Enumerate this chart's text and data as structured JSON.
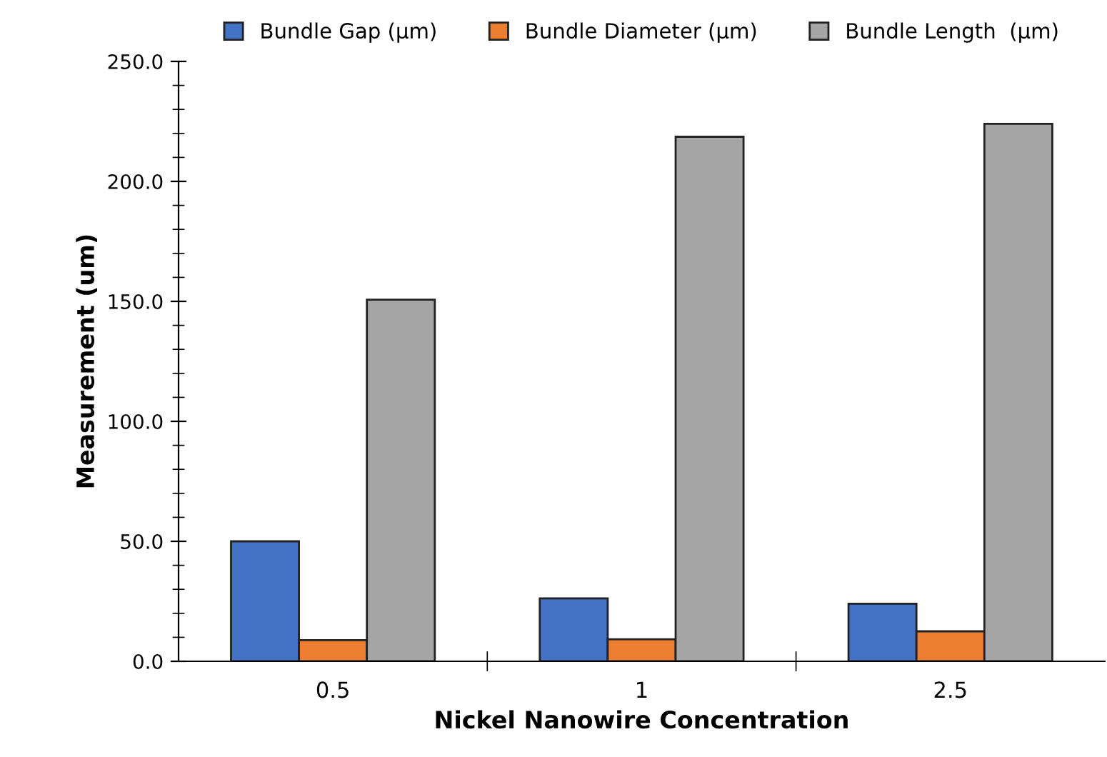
{
  "chart_data": {
    "type": "bar",
    "xlabel": "Nickel Nanowire Concentration",
    "ylabel": "Measurement (um)",
    "categories": [
      "0.5",
      "1",
      "2.5"
    ],
    "series": [
      {
        "name": "Bundle Gap (µm)",
        "color": "#4472c4",
        "values": [
          50.0,
          26.2,
          24.0
        ]
      },
      {
        "name": "Bundle Diameter (µm)",
        "color": "#ed7d31",
        "values": [
          8.8,
          9.2,
          12.5
        ]
      },
      {
        "name": "Bundle Length  (µm)",
        "color": "#a5a5a5",
        "values": [
          150.7,
          218.6,
          224.0
        ]
      }
    ],
    "ylim": [
      0,
      250
    ],
    "yticks": [
      {
        "value": 0,
        "label": "0.0"
      },
      {
        "value": 50,
        "label": "50.0"
      },
      {
        "value": 100,
        "label": "100.0"
      },
      {
        "value": 150,
        "label": "150.0"
      },
      {
        "value": 200,
        "label": "200.0"
      },
      {
        "value": 250,
        "label": "250.0"
      }
    ],
    "grid": false,
    "legend": "top"
  }
}
